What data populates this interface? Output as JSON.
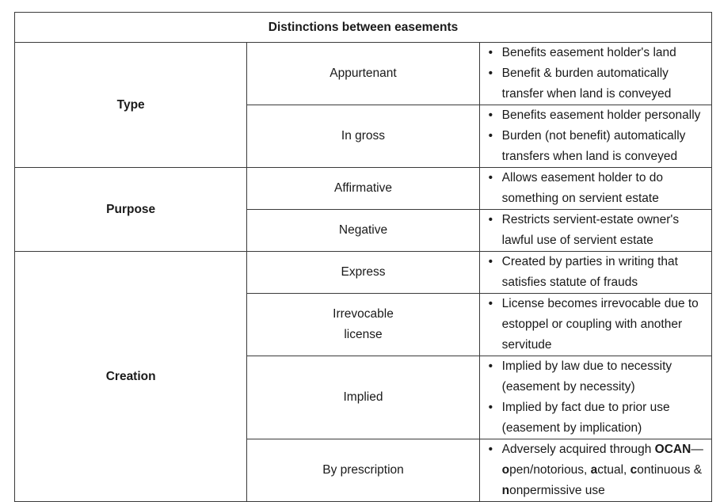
{
  "table": {
    "title": "Distinctions between easements",
    "groups": {
      "type": "Type",
      "purpose": "Purpose",
      "creation": "Creation"
    },
    "rows": [
      {
        "label": "Appurtenant",
        "bullets": [
          "Benefits easement holder's land",
          "Benefit & burden automatically transfer when land is conveyed"
        ]
      },
      {
        "label": "In gross",
        "bullets": [
          "Benefits easement holder personally",
          "Burden (not benefit) automatically transfers when land is conveyed"
        ]
      },
      {
        "label": "Affirmative",
        "bullets": [
          "Allows easement holder to do something on servient estate"
        ]
      },
      {
        "label": "Negative",
        "bullets": [
          "Restricts servient-estate owner's lawful use of servient estate"
        ]
      },
      {
        "label": "Express",
        "bullets": [
          "Created by parties in writing that satisfies statute of frauds"
        ]
      },
      {
        "label_line1": "Irrevocable",
        "label_line2": "license",
        "bullets": [
          "License becomes irrevocable due to estoppel or coupling with another servitude"
        ]
      },
      {
        "label": "Implied",
        "bullets": [
          "Implied by law due to necessity (easement by necessity)",
          "Implied by fact due to prior use (easement by implication)"
        ]
      },
      {
        "label": "By prescription",
        "ocan": {
          "pre": "Adversely acquired through ",
          "acronym": "OCAN",
          "dash": "—",
          "o": "o",
          "o_rest": "pen/notorious, ",
          "a": "a",
          "a_rest": "ctual, ",
          "c": "c",
          "c_rest": "ontinuous &",
          "n": "n",
          "n_rest": "onpermissive use"
        }
      }
    ]
  }
}
